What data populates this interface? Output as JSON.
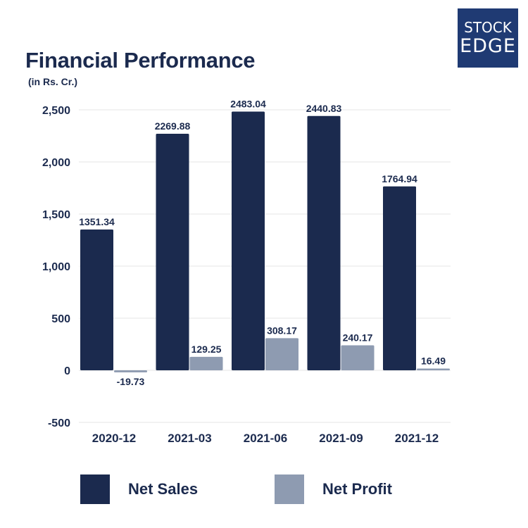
{
  "logo": {
    "line1": "STOCK",
    "line2": "EDGE"
  },
  "colors": {
    "net_sales": "#1b2a4e",
    "net_profit": "#8e9bb1",
    "text": "#1b2a4e",
    "grid": "#e6e6e6"
  },
  "chart_data": {
    "type": "bar",
    "title": "Financial Performance",
    "subtitle": "(in Rs. Cr.)",
    "categories": [
      "2020-12",
      "2021-03",
      "2021-06",
      "2021-09",
      "2021-12"
    ],
    "series": [
      {
        "name": "Net Sales",
        "values": [
          1351.34,
          2269.88,
          2483.04,
          2440.83,
          1764.94
        ],
        "labels": [
          "1351.34",
          "2269.88",
          "2483.04",
          "2440.83",
          "1764.94"
        ]
      },
      {
        "name": "Net Profit",
        "values": [
          -19.73,
          129.25,
          308.17,
          240.17,
          16.49
        ],
        "labels": [
          "-19.73",
          "129.25",
          "308.17",
          "240.17",
          "16.49"
        ]
      }
    ],
    "yticks": [
      -500,
      0,
      500,
      1000,
      1500,
      2000,
      2500
    ],
    "ytick_labels": [
      "-500",
      "0",
      "500",
      "1,000",
      "1,500",
      "2,000",
      "2,500"
    ],
    "ylim": [
      -500,
      2500
    ],
    "grid": true,
    "legend_position": "bottom"
  }
}
